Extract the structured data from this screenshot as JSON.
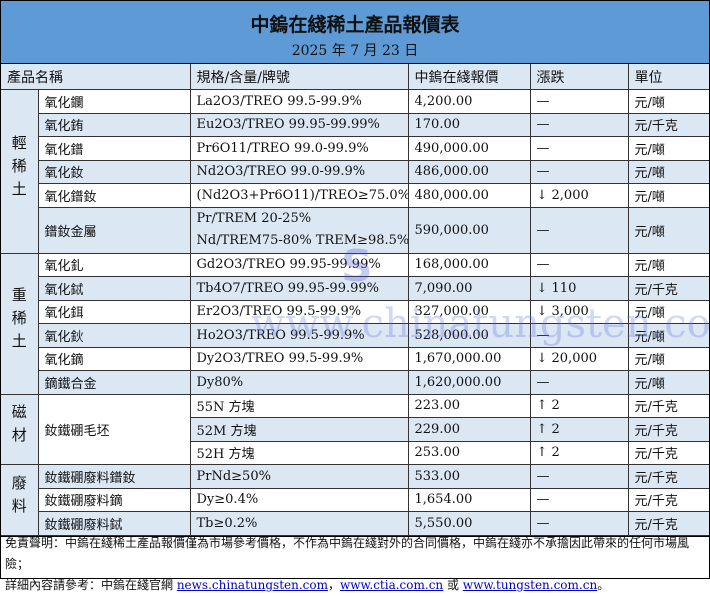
{
  "title": "中鎢在綫稀土產品報價表",
  "date": "2025 年 7 月 23 日",
  "headers": [
    "產品名稱",
    "規格/含量/牌號",
    "中鎢在綫報價",
    "漲跌",
    "單位"
  ],
  "categories": {
    "light": "輕稀土",
    "heavy": "重稀土",
    "magnet": "磁材",
    "scrap": "廢料"
  },
  "rows": [
    {
      "name": "氧化鑭",
      "spec": "La2O3/TREO 99.5-99.9%",
      "price": "4,200.00",
      "change": "—",
      "unit": "元/噸"
    },
    {
      "name": "氧化銪",
      "spec": "Eu2O3/TREO 99.95-99.99%",
      "price": "170.00",
      "change": "—",
      "unit": "元/千克"
    },
    {
      "name": "氧化鐠",
      "spec": "Pr6O11/TREO 99.0-99.9%",
      "price": "490,000.00",
      "change": "—",
      "unit": "元/噸"
    },
    {
      "name": "氧化釹",
      "spec": "Nd2O3/TREO 99.0-99.9%",
      "price": "486,000.00",
      "change": "—",
      "unit": "元/噸"
    },
    {
      "name": "氧化鐠釹",
      "spec": "(Nd2O3+Pr6O11)/TREO≥75.0%",
      "price": "480,000.00",
      "change": "↓ 2,000",
      "unit": "元/噸"
    },
    {
      "name": "鐠釹金屬",
      "spec": "Pr/TREM 20-25%",
      "spec2": "Nd/TREM75-80% TREM≥98.5%",
      "price": "590,000.00",
      "change": "—",
      "unit": "元/噸"
    },
    {
      "name": "氧化釓",
      "spec": "Gd2O3/TREO 99.95-99.99%",
      "price": "168,000.00",
      "change": "—",
      "unit": "元/噸"
    },
    {
      "name": "氧化鋱",
      "spec": "Tb4O7/TREO 99.95-99.99%",
      "price": "7,090.00",
      "change": "↓ 110",
      "unit": "元/千克"
    },
    {
      "name": "氧化鉺",
      "spec": "Er2O3/TREO 99.5-99.9%",
      "price": "327,000.00",
      "change": "↓ 3,000",
      "unit": "元/噸"
    },
    {
      "name": "氧化鈥",
      "spec": "Ho2O3/TREO 99.5-99.9%",
      "price": "528,000.00",
      "change": "—",
      "unit": "元/噸"
    },
    {
      "name": "氧化鏑",
      "spec": "Dy2O3/TREO 99.5-99.9%",
      "price": "1,670,000.00",
      "change": "↓ 20,000",
      "unit": "元/噸"
    },
    {
      "name": "鏑鐵合金",
      "spec": "Dy80%",
      "price": "1,620,000.00",
      "change": "—",
      "unit": "元/噸"
    },
    {
      "name": "釹鐵硼毛坯",
      "spec": "55N 方塊",
      "price": "223.00",
      "change": "↑ 2",
      "unit": "元/千克"
    },
    {
      "spec": "52M 方塊",
      "price": "229.00",
      "change": "↑ 2",
      "unit": "元/千克"
    },
    {
      "spec": "52H 方塊",
      "price": "253.00",
      "change": "↑ 2",
      "unit": "元/千克"
    },
    {
      "name": "釹鐵硼廢料鐠釹",
      "spec": "PrNd≥50%",
      "price": "533.00",
      "change": "—",
      "unit": "元/千克"
    },
    {
      "name": "釹鐵硼廢料鏑",
      "spec": "Dy≥0.4%",
      "price": "1,654.00",
      "change": "—",
      "unit": "元/千克"
    },
    {
      "name": "釹鐵硼廢料鋱",
      "spec": "Tb≥0.2%",
      "price": "5,550.00",
      "change": "—",
      "unit": "元/千克"
    }
  ],
  "footer": {
    "disclaimer": "免責聲明：中鎢在綫稀土產品報價僅為市場參考價格，不作為中鎢在綫對外的合同價格，中鎢在綫亦不承擔因此帶來的任何市場風險；",
    "ref_prefix": "詳細內容請參考：中鎢在綫官網 ",
    "link1": "news.chinatungsten.com",
    "sep1": "，",
    "link2": "www.ctia.com.cn",
    "sep2": " 或 ",
    "link3": "www.tungsten.com.cn",
    "end": "。"
  },
  "watermark": "www.chinatungsten.com",
  "logo_text": "CTOMS",
  "colors": {
    "title_bg": "#5d9ad6",
    "stripe": "#dce7f4",
    "link": "#0000cc"
  }
}
